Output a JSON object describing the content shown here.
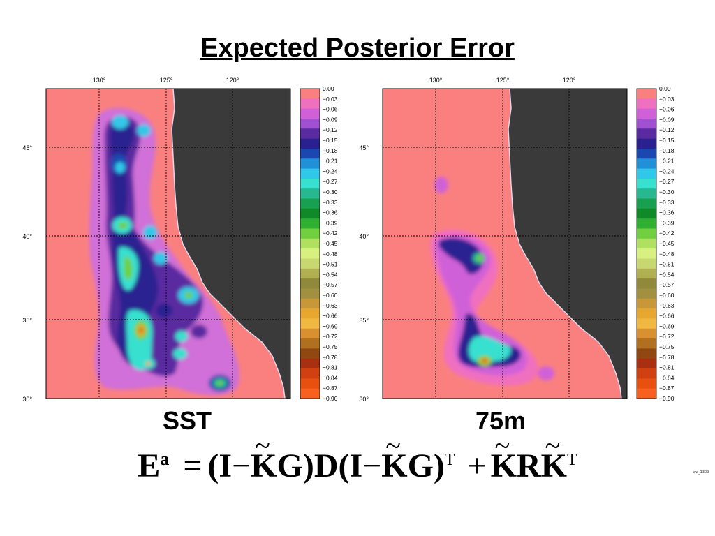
{
  "title": "Expected Posterior Error",
  "colors": {
    "land": "#3a3a3a",
    "ocean_bg": "#fa8080",
    "coast": "#d8d8ee",
    "grid": "#000000"
  },
  "map": {
    "lon_labels": [
      "130°",
      "125°",
      "120°"
    ],
    "lat_labels": [
      "45°",
      "40°",
      "35°",
      "30°"
    ]
  },
  "colorbar": {
    "labels": [
      "0.00",
      "−0.03",
      "−0.06",
      "−0.09",
      "−0.12",
      "−0.15",
      "−0.18",
      "−0.21",
      "−0.24",
      "−0.27",
      "−0.30",
      "−0.33",
      "−0.36",
      "−0.39",
      "−0.42",
      "−0.45",
      "−0.48",
      "−0.51",
      "−0.54",
      "−0.57",
      "−0.60",
      "−0.63",
      "−0.66",
      "−0.69",
      "−0.72",
      "−0.75",
      "−0.78",
      "−0.81",
      "−0.84",
      "−0.87",
      "−0.90"
    ],
    "colors": [
      "#fa8080",
      "#f070c0",
      "#d060d8",
      "#a050d0",
      "#5a2aa0",
      "#2a2090",
      "#1a48b0",
      "#2090d8",
      "#30c8e8",
      "#38e0d0",
      "#28b890",
      "#18a050",
      "#108a28",
      "#30b030",
      "#70d040",
      "#b0e060",
      "#d8f080",
      "#c8d870",
      "#b0b050",
      "#90883a",
      "#a09040",
      "#c89838",
      "#e8a830",
      "#f0b840",
      "#d89030",
      "#b07020",
      "#904810",
      "#a83010",
      "#d04010",
      "#e85010",
      "#f86020"
    ]
  },
  "panels": [
    {
      "caption": "SST"
    },
    {
      "caption": "75m"
    }
  ],
  "formula": {
    "E": "E",
    "sup_a": "a",
    "eq": "=",
    "lp1": "(",
    "I1": "I",
    "minus1": "−",
    "K1": "K",
    "G1": "G",
    "rp1": ")",
    "D": "D",
    "lp2": "(",
    "I2": "I",
    "minus2": "−",
    "K2": "K",
    "G2": "G",
    "rp2": ")",
    "T1": "T",
    "plus": "+",
    "K3": "K",
    "R": "R",
    "K4": "K",
    "T2": "T",
    "tilde": "~"
  },
  "corner_note": "ww_1309"
}
